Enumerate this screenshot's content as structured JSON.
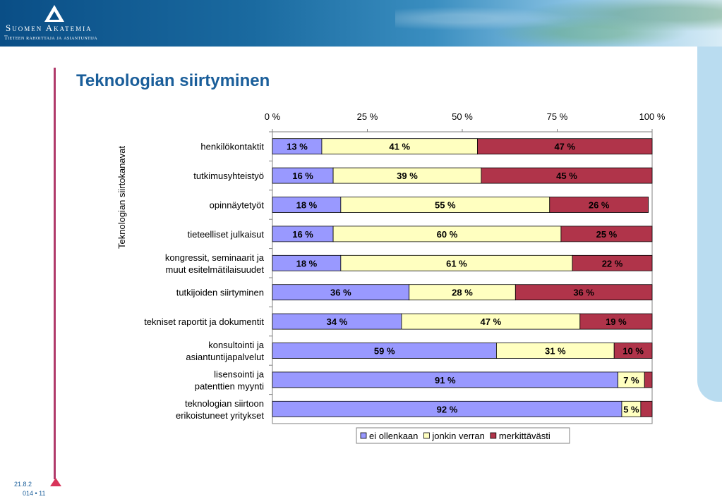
{
  "header": {
    "org_name": "Suomen Akatemia",
    "org_tagline": "Tieteen rahoittaja ja asiantuntija"
  },
  "slide": {
    "title": "Teknologian siirtyminen",
    "footer_date_line1": "21.8.2",
    "footer_date_line2": "014 • 11"
  },
  "colors": {
    "banner": "#0a4e86",
    "title": "#1a5e9a",
    "rule": "#b03a6a",
    "series": [
      "#9999ff",
      "#ffffc0",
      "#b0344a"
    ]
  },
  "chart_data": {
    "type": "bar",
    "orientation": "horizontal",
    "stacked": "percent",
    "title": "",
    "xlabel": "",
    "ylabel": "Teknologian siirtokanavat",
    "xlim": [
      0,
      100
    ],
    "x_ticks": [
      "0 %",
      "25 %",
      "50 %",
      "75 %",
      "100 %"
    ],
    "legend_position": "bottom-right",
    "categories": [
      "henkilökontaktit",
      "tutkimusyhteistyö",
      "opinnäytetyöt",
      "tieteelliset julkaisut",
      "kongressit, seminaarit ja\nmuut esitelmätilaisuudet",
      "tutkijoiden siirtyminen",
      "tekniset raportit ja dokumentit",
      "konsultointi ja\nasiantuntijapalvelut",
      "lisensointi ja\npatenttien myynti",
      "teknologian siirtoon\nerikoistuneet yritykset"
    ],
    "series": [
      {
        "name": "ei ollenkaan",
        "values": [
          13,
          16,
          18,
          16,
          18,
          36,
          34,
          59,
          91,
          92
        ],
        "labels": [
          "13 %",
          "16 %",
          "18 %",
          "16 %",
          "18 %",
          "36 %",
          "34 %",
          "59 %",
          "91 %",
          "92 %"
        ]
      },
      {
        "name": "jonkin verran",
        "values": [
          41,
          39,
          55,
          60,
          61,
          28,
          47,
          31,
          7,
          5
        ],
        "labels": [
          "41 %",
          "39 %",
          "55 %",
          "60 %",
          "61 %",
          "28 %",
          "47 %",
          "31 %",
          "7 %",
          "5 %"
        ]
      },
      {
        "name": "merkittävästi",
        "values": [
          47,
          45,
          26,
          25,
          22,
          36,
          19,
          10,
          2,
          3
        ],
        "labels": [
          "47 %",
          "45 %",
          "26 %",
          "25 %",
          "22 %",
          "36 %",
          "19 %",
          "10 %",
          "",
          ""
        ]
      }
    ]
  }
}
